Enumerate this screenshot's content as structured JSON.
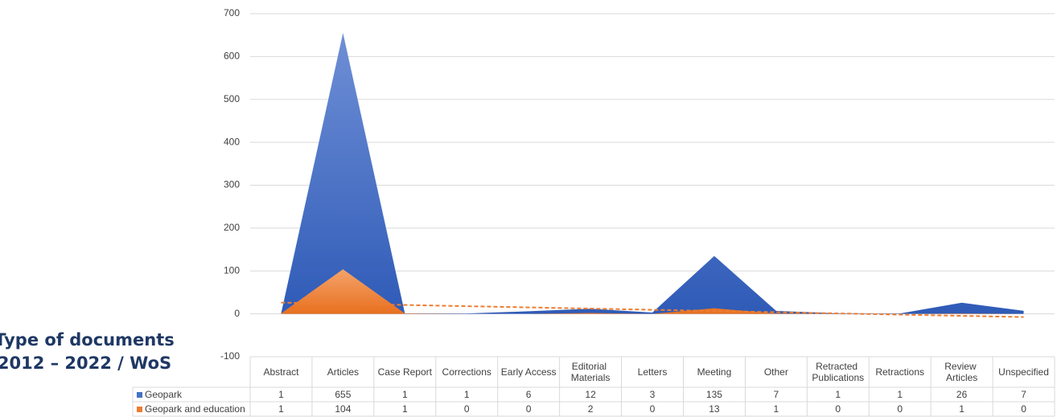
{
  "chart_data": {
    "type": "area",
    "title": "Type of documents",
    "subtitle": "2012 – 2022 / WoS",
    "categories": [
      "Abstract",
      "Articles",
      "Case Report",
      "Corrections",
      "Early Access",
      "Editorial Materials",
      "Letters",
      "Meeting",
      "Other",
      "Retracted Publications",
      "Retractions",
      "Review Articles",
      "Unspecified"
    ],
    "series": [
      {
        "name": "Geopark",
        "color": "#4472c4",
        "values": [
          1,
          655,
          1,
          1,
          6,
          12,
          3,
          135,
          7,
          1,
          1,
          26,
          7
        ]
      },
      {
        "name": "Geopark and education",
        "color": "#ed7d31",
        "values": [
          1,
          104,
          1,
          0,
          0,
          2,
          0,
          13,
          1,
          0,
          0,
          1,
          0
        ],
        "trendline": "linear"
      }
    ],
    "ylim": [
      -100,
      700
    ],
    "yticks": [
      -100,
      0,
      100,
      200,
      300,
      400,
      500,
      600,
      700
    ],
    "grid": true,
    "data_table": true
  }
}
